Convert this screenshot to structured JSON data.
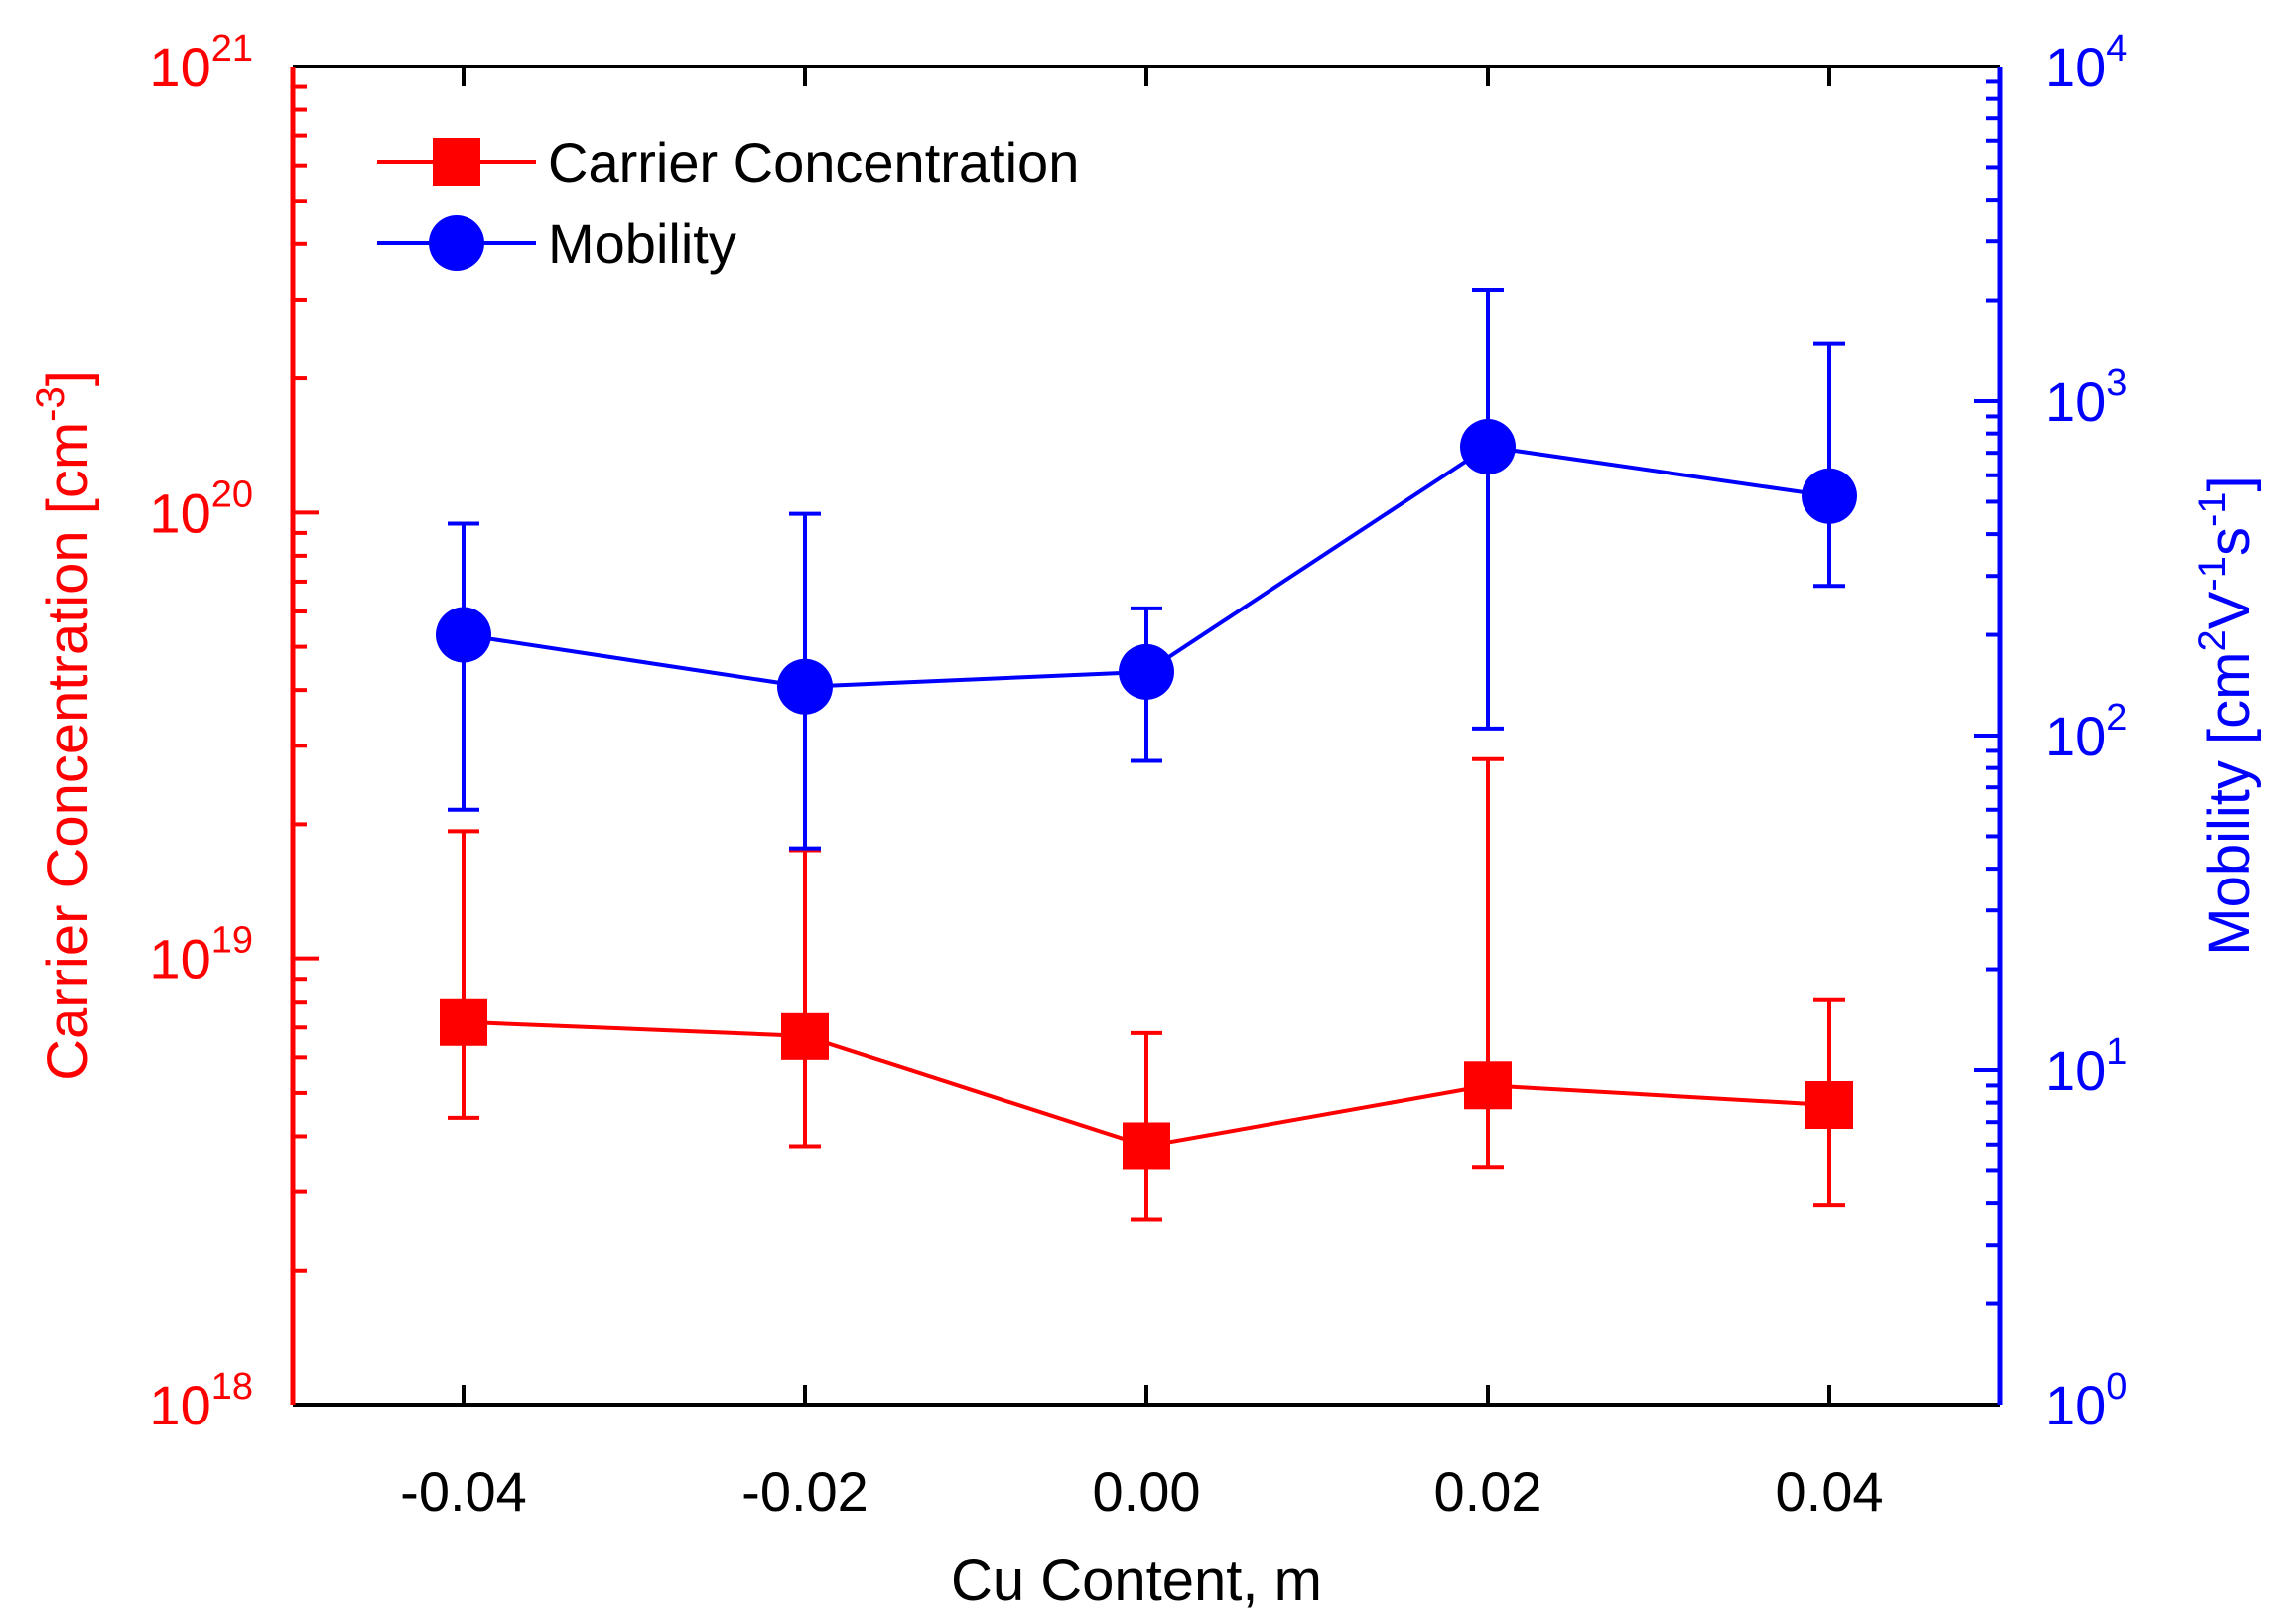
{
  "chart_data": {
    "type": "line",
    "x": [
      -0.04,
      -0.02,
      0.0,
      0.02,
      0.04
    ],
    "xlabel": "Cu Content, m",
    "xlim": [
      -0.05,
      0.05
    ],
    "x_ticks": [
      -0.04,
      -0.02,
      0.0,
      0.02,
      0.04
    ],
    "x_tick_labels": [
      "-0.04",
      "-0.02",
      "0.00",
      "0.02",
      "0.04"
    ],
    "left_axis": {
      "label": "Carrier Concentration [cm",
      "label_sup": "-3",
      "label_end": "]",
      "scale": "log",
      "lim": [
        1e+18,
        1e+21
      ],
      "color": "#ff0000",
      "tick_labels": [
        {
          "value": 1e+18,
          "base": "10",
          "exp": "18"
        },
        {
          "value": 1e+19,
          "base": "10",
          "exp": "19"
        },
        {
          "value": 1e+20,
          "base": "10",
          "exp": "20"
        },
        {
          "value": 1e+21,
          "base": "10",
          "exp": "21"
        }
      ]
    },
    "right_axis": {
      "label_parts": [
        {
          "t": "Mobility [cm",
          "sup": false
        },
        {
          "t": "2",
          "sup": true
        },
        {
          "t": "V",
          "sup": false
        },
        {
          "t": "-1",
          "sup": true
        },
        {
          "t": "s",
          "sup": false
        },
        {
          "t": "-1",
          "sup": true
        },
        {
          "t": "]",
          "sup": false
        }
      ],
      "scale": "log",
      "lim": [
        1,
        10000
      ],
      "color": "#0000ff",
      "tick_labels": [
        {
          "value": 1,
          "base": "10",
          "exp": "0"
        },
        {
          "value": 10,
          "base": "10",
          "exp": "1"
        },
        {
          "value": 100,
          "base": "10",
          "exp": "2"
        },
        {
          "value": 1000,
          "base": "10",
          "exp": "3"
        },
        {
          "value": 10000,
          "base": "10",
          "exp": "4"
        }
      ]
    },
    "series": [
      {
        "name": "Carrier Concentration",
        "axis": "left",
        "marker": "square",
        "color": "#ff0000",
        "values": [
          7.2e+18,
          6.7e+18,
          3.8e+18,
          5.2e+18,
          4.7e+18
        ],
        "err_low": [
          4.4e+18,
          3.8e+18,
          2.6e+18,
          3.4e+18,
          2.8e+18
        ],
        "err_high": [
          1.93e+19,
          1.75e+19,
          6.8e+18,
          2.8e+19,
          8.1e+18
        ]
      },
      {
        "name": "Mobility",
        "axis": "right",
        "marker": "circle",
        "color": "#0000ff",
        "values": [
          200,
          140,
          155,
          730,
          520
        ],
        "err_low": [
          60,
          46,
          84,
          105,
          280
        ],
        "err_high": [
          430,
          460,
          240,
          2150,
          1480
        ]
      }
    ],
    "legend": {
      "position": "top-left"
    }
  }
}
